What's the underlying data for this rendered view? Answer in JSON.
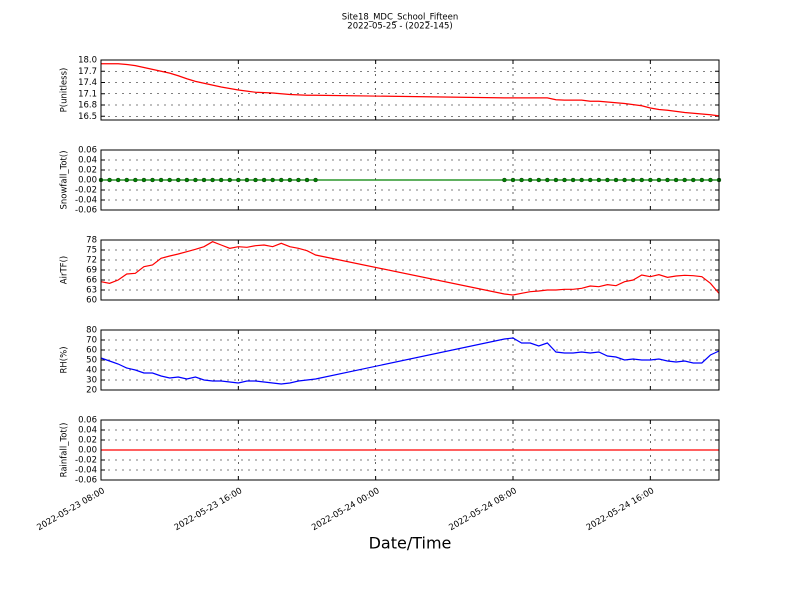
{
  "chart_data": [
    {
      "type": "line",
      "title": "Site18_MDC_School_Fifteen",
      "subtitle": "2022-05-25 - (2022-145)",
      "ylabel": "P(unitless)",
      "color": "#ff0000",
      "marker": false,
      "grid": true,
      "x": [
        "2022-05-23 08:00",
        "2022-05-23 08:30",
        "2022-05-23 09:00",
        "2022-05-23 09:30",
        "2022-05-23 10:00",
        "2022-05-23 10:30",
        "2022-05-23 11:00",
        "2022-05-23 11:30",
        "2022-05-23 12:00",
        "2022-05-23 12:30",
        "2022-05-23 13:00",
        "2022-05-23 13:30",
        "2022-05-23 14:00",
        "2022-05-23 14:30",
        "2022-05-23 15:00",
        "2022-05-23 15:30",
        "2022-05-23 16:00",
        "2022-05-23 16:30",
        "2022-05-23 17:00",
        "2022-05-23 17:30",
        "2022-05-23 18:00",
        "2022-05-23 18:30",
        "2022-05-23 19:00",
        "2022-05-23 19:30",
        "2022-05-23 20:00",
        "2022-05-23 20:30",
        "2022-05-24 07:30",
        "2022-05-24 08:00",
        "2022-05-24 08:30",
        "2022-05-24 09:00",
        "2022-05-24 09:30",
        "2022-05-24 10:00",
        "2022-05-24 10:30",
        "2022-05-24 11:00",
        "2022-05-24 11:30",
        "2022-05-24 12:00",
        "2022-05-24 12:30",
        "2022-05-24 13:00",
        "2022-05-24 13:30",
        "2022-05-24 14:00",
        "2022-05-24 14:30",
        "2022-05-24 15:00",
        "2022-05-24 15:30",
        "2022-05-24 16:00",
        "2022-05-24 16:30",
        "2022-05-24 17:00",
        "2022-05-24 17:30",
        "2022-05-24 18:00",
        "2022-05-24 18:30",
        "2022-05-24 19:00",
        "2022-05-24 19:30",
        "2022-05-24 20:00"
      ],
      "values": [
        17.9,
        17.9,
        17.9,
        17.88,
        17.85,
        17.8,
        17.75,
        17.7,
        17.65,
        17.58,
        17.5,
        17.43,
        17.38,
        17.33,
        17.28,
        17.24,
        17.2,
        17.17,
        17.14,
        17.13,
        17.12,
        17.1,
        17.08,
        17.07,
        17.06,
        17.06,
        16.99,
        16.99,
        16.99,
        16.99,
        16.99,
        16.99,
        16.94,
        16.93,
        16.93,
        16.93,
        16.9,
        16.9,
        16.88,
        16.86,
        16.84,
        16.81,
        16.78,
        16.72,
        16.68,
        16.66,
        16.63,
        16.6,
        16.58,
        16.56,
        16.54,
        16.51
      ],
      "xlim": [
        "2022-05-23 08:00",
        "2022-05-24 20:00"
      ],
      "xticks": [
        "2022-05-23 08:00",
        "2022-05-23 16:00",
        "2022-05-24 00:00",
        "2022-05-24 08:00",
        "2022-05-24 16:00"
      ],
      "ylim": [
        16.4,
        18.0
      ],
      "yticks": [
        {
          "value": 18,
          "label": "18.0"
        },
        17.7,
        17.4,
        17.1,
        16.8,
        16.5
      ]
    },
    {
      "type": "line",
      "ylabel": "Snowfall_Tot()",
      "color": "#008000",
      "marker": true,
      "grid": true,
      "x": [
        "2022-05-23 08:00",
        "2022-05-23 08:30",
        "2022-05-23 09:00",
        "2022-05-23 09:30",
        "2022-05-23 10:00",
        "2022-05-23 10:30",
        "2022-05-23 11:00",
        "2022-05-23 11:30",
        "2022-05-23 12:00",
        "2022-05-23 12:30",
        "2022-05-23 13:00",
        "2022-05-23 13:30",
        "2022-05-23 14:00",
        "2022-05-23 14:30",
        "2022-05-23 15:00",
        "2022-05-23 15:30",
        "2022-05-23 16:00",
        "2022-05-23 16:30",
        "2022-05-23 17:00",
        "2022-05-23 17:30",
        "2022-05-23 18:00",
        "2022-05-23 18:30",
        "2022-05-23 19:00",
        "2022-05-23 19:30",
        "2022-05-23 20:00",
        "2022-05-23 20:30",
        "2022-05-24 07:30",
        "2022-05-24 08:00",
        "2022-05-24 08:30",
        "2022-05-24 09:00",
        "2022-05-24 09:30",
        "2022-05-24 10:00",
        "2022-05-24 10:30",
        "2022-05-24 11:00",
        "2022-05-24 11:30",
        "2022-05-24 12:00",
        "2022-05-24 12:30",
        "2022-05-24 13:00",
        "2022-05-24 13:30",
        "2022-05-24 14:00",
        "2022-05-24 14:30",
        "2022-05-24 15:00",
        "2022-05-24 15:30",
        "2022-05-24 16:00",
        "2022-05-24 16:30",
        "2022-05-24 17:00",
        "2022-05-24 17:30",
        "2022-05-24 18:00",
        "2022-05-24 18:30",
        "2022-05-24 19:00",
        "2022-05-24 19:30",
        "2022-05-24 20:00"
      ],
      "values": [
        0,
        0,
        0,
        0,
        0,
        0,
        0,
        0,
        0,
        0,
        0,
        0,
        0,
        0,
        0,
        0,
        0,
        0,
        0,
        0,
        0,
        0,
        0,
        0,
        0,
        0,
        0,
        0,
        0,
        0,
        0,
        0,
        0,
        0,
        0,
        0,
        0,
        0,
        0,
        0,
        0,
        0,
        0,
        0,
        0,
        0,
        0,
        0,
        0,
        0,
        0,
        0
      ],
      "xlim": [
        "2022-05-23 08:00",
        "2022-05-24 20:00"
      ],
      "xticks": [
        "2022-05-23 08:00",
        "2022-05-23 16:00",
        "2022-05-24 00:00",
        "2022-05-24 08:00",
        "2022-05-24 16:00"
      ],
      "ylim": [
        -0.06,
        0.06
      ],
      "yticks": [
        0.06,
        0.04,
        0.02,
        {
          "value": 0,
          "label": "0.00"
        },
        -0.02,
        -0.04,
        -0.06
      ]
    },
    {
      "type": "line",
      "ylabel": "AirTF()",
      "color": "#ff0000",
      "marker": false,
      "grid": true,
      "x": [
        "2022-05-23 08:00",
        "2022-05-23 08:30",
        "2022-05-23 09:00",
        "2022-05-23 09:30",
        "2022-05-23 10:00",
        "2022-05-23 10:30",
        "2022-05-23 11:00",
        "2022-05-23 11:30",
        "2022-05-23 12:00",
        "2022-05-23 12:30",
        "2022-05-23 13:00",
        "2022-05-23 13:30",
        "2022-05-23 14:00",
        "2022-05-23 14:30",
        "2022-05-23 15:00",
        "2022-05-23 15:30",
        "2022-05-23 16:00",
        "2022-05-23 16:30",
        "2022-05-23 17:00",
        "2022-05-23 17:30",
        "2022-05-23 18:00",
        "2022-05-23 18:30",
        "2022-05-23 19:00",
        "2022-05-23 19:30",
        "2022-05-23 20:00",
        "2022-05-23 20:30",
        "2022-05-24 07:30",
        "2022-05-24 08:00",
        "2022-05-24 08:30",
        "2022-05-24 09:00",
        "2022-05-24 09:30",
        "2022-05-24 10:00",
        "2022-05-24 10:30",
        "2022-05-24 11:00",
        "2022-05-24 11:30",
        "2022-05-24 12:00",
        "2022-05-24 12:30",
        "2022-05-24 13:00",
        "2022-05-24 13:30",
        "2022-05-24 14:00",
        "2022-05-24 14:30",
        "2022-05-24 15:00",
        "2022-05-24 15:30",
        "2022-05-24 16:00",
        "2022-05-24 16:30",
        "2022-05-24 17:00",
        "2022-05-24 17:30",
        "2022-05-24 18:00",
        "2022-05-24 18:30",
        "2022-05-24 19:00",
        "2022-05-24 19:30",
        "2022-05-24 20:00"
      ],
      "values": [
        65.5,
        65,
        66,
        67.8,
        68,
        70,
        70.5,
        72.5,
        73.2,
        73.8,
        74.5,
        75.2,
        76,
        77.5,
        76.5,
        75.5,
        76,
        75.8,
        76.3,
        76.5,
        76,
        77,
        76,
        75.5,
        74.8,
        73.5,
        61.8,
        61.5,
        62,
        62.5,
        62.7,
        63,
        63,
        63.2,
        63.2,
        63.5,
        64.2,
        64,
        64.6,
        64.3,
        65.5,
        66,
        67.5,
        67,
        67.6,
        66.8,
        67.2,
        67.4,
        67.3,
        67,
        65,
        62
      ],
      "xlim": [
        "2022-05-23 08:00",
        "2022-05-24 20:00"
      ],
      "xticks": [
        "2022-05-23 08:00",
        "2022-05-23 16:00",
        "2022-05-24 00:00",
        "2022-05-24 08:00",
        "2022-05-24 16:00"
      ],
      "ylim": [
        60,
        78
      ],
      "yticks": [
        78,
        75,
        72,
        69,
        66,
        63,
        60
      ]
    },
    {
      "type": "line",
      "ylabel": "RH(%)",
      "color": "#0000ff",
      "marker": false,
      "grid": true,
      "x": [
        "2022-05-23 08:00",
        "2022-05-23 08:30",
        "2022-05-23 09:00",
        "2022-05-23 09:30",
        "2022-05-23 10:00",
        "2022-05-23 10:30",
        "2022-05-23 11:00",
        "2022-05-23 11:30",
        "2022-05-23 12:00",
        "2022-05-23 12:30",
        "2022-05-23 13:00",
        "2022-05-23 13:30",
        "2022-05-23 14:00",
        "2022-05-23 14:30",
        "2022-05-23 15:00",
        "2022-05-23 15:30",
        "2022-05-23 16:00",
        "2022-05-23 16:30",
        "2022-05-23 17:00",
        "2022-05-23 17:30",
        "2022-05-23 18:00",
        "2022-05-23 18:30",
        "2022-05-23 19:00",
        "2022-05-23 19:30",
        "2022-05-23 20:00",
        "2022-05-23 20:30",
        "2022-05-24 07:30",
        "2022-05-24 08:00",
        "2022-05-24 08:30",
        "2022-05-24 09:00",
        "2022-05-24 09:30",
        "2022-05-24 10:00",
        "2022-05-24 10:30",
        "2022-05-24 11:00",
        "2022-05-24 11:30",
        "2022-05-24 12:00",
        "2022-05-24 12:30",
        "2022-05-24 13:00",
        "2022-05-24 13:30",
        "2022-05-24 14:00",
        "2022-05-24 14:30",
        "2022-05-24 15:00",
        "2022-05-24 15:30",
        "2022-05-24 16:00",
        "2022-05-24 16:30",
        "2022-05-24 17:00",
        "2022-05-24 17:30",
        "2022-05-24 18:00",
        "2022-05-24 18:30",
        "2022-05-24 19:00",
        "2022-05-24 19:30",
        "2022-05-24 20:00"
      ],
      "values": [
        52,
        49,
        46,
        42,
        40,
        37,
        37,
        34,
        32,
        33,
        31,
        33,
        30,
        29,
        29,
        28,
        27,
        29,
        29,
        28,
        27,
        26,
        27,
        29,
        30,
        31,
        71,
        72,
        67,
        67,
        64,
        67,
        58,
        57,
        57,
        58,
        57,
        58,
        54,
        53,
        50,
        51,
        50,
        50,
        51,
        49,
        48,
        49,
        47,
        47,
        55,
        59
      ],
      "xlim": [
        "2022-05-23 08:00",
        "2022-05-24 20:00"
      ],
      "xticks": [
        "2022-05-23 08:00",
        "2022-05-23 16:00",
        "2022-05-24 00:00",
        "2022-05-24 08:00",
        "2022-05-24 16:00"
      ],
      "ylim": [
        20,
        80
      ],
      "yticks": [
        80,
        70,
        60,
        50,
        40,
        30,
        20
      ]
    },
    {
      "type": "line",
      "ylabel": "Rainfall_Tot()",
      "xlabel": "Date/Time",
      "color": "#ff0000",
      "marker": false,
      "grid": true,
      "x": [
        "2022-05-23 08:00",
        "2022-05-23 08:30",
        "2022-05-23 09:00",
        "2022-05-23 09:30",
        "2022-05-23 10:00",
        "2022-05-23 10:30",
        "2022-05-23 11:00",
        "2022-05-23 11:30",
        "2022-05-23 12:00",
        "2022-05-23 12:30",
        "2022-05-23 13:00",
        "2022-05-23 13:30",
        "2022-05-23 14:00",
        "2022-05-23 14:30",
        "2022-05-23 15:00",
        "2022-05-23 15:30",
        "2022-05-23 16:00",
        "2022-05-23 16:30",
        "2022-05-23 17:00",
        "2022-05-23 17:30",
        "2022-05-23 18:00",
        "2022-05-23 18:30",
        "2022-05-23 19:00",
        "2022-05-23 19:30",
        "2022-05-23 20:00",
        "2022-05-23 20:30",
        "2022-05-24 07:30",
        "2022-05-24 08:00",
        "2022-05-24 08:30",
        "2022-05-24 09:00",
        "2022-05-24 09:30",
        "2022-05-24 10:00",
        "2022-05-24 10:30",
        "2022-05-24 11:00",
        "2022-05-24 11:30",
        "2022-05-24 12:00",
        "2022-05-24 12:30",
        "2022-05-24 13:00",
        "2022-05-24 13:30",
        "2022-05-24 14:00",
        "2022-05-24 14:30",
        "2022-05-24 15:00",
        "2022-05-24 15:30",
        "2022-05-24 16:00",
        "2022-05-24 16:30",
        "2022-05-24 17:00",
        "2022-05-24 17:30",
        "2022-05-24 18:00",
        "2022-05-24 18:30",
        "2022-05-24 19:00",
        "2022-05-24 19:30",
        "2022-05-24 20:00"
      ],
      "values": [
        0,
        0,
        0,
        0,
        0,
        0,
        0,
        0,
        0,
        0,
        0,
        0,
        0,
        0,
        0,
        0,
        0,
        0,
        0,
        0,
        0,
        0,
        0,
        0,
        0,
        0,
        0,
        0,
        0,
        0,
        0,
        0,
        0,
        0,
        0,
        0,
        0,
        0,
        0,
        0,
        0,
        0,
        0,
        0,
        0,
        0,
        0,
        0,
        0,
        0,
        0,
        0
      ],
      "xlim": [
        "2022-05-23 08:00",
        "2022-05-24 20:00"
      ],
      "xticks": [
        "2022-05-23 08:00",
        "2022-05-23 16:00",
        "2022-05-24 00:00",
        "2022-05-24 08:00",
        "2022-05-24 16:00"
      ],
      "xticklabels": true,
      "ylim": [
        -0.06,
        0.06
      ],
      "yticks": [
        0.06,
        0.04,
        0.02,
        {
          "value": 0,
          "label": "0.00"
        },
        -0.02,
        -0.04,
        -0.06
      ]
    }
  ]
}
